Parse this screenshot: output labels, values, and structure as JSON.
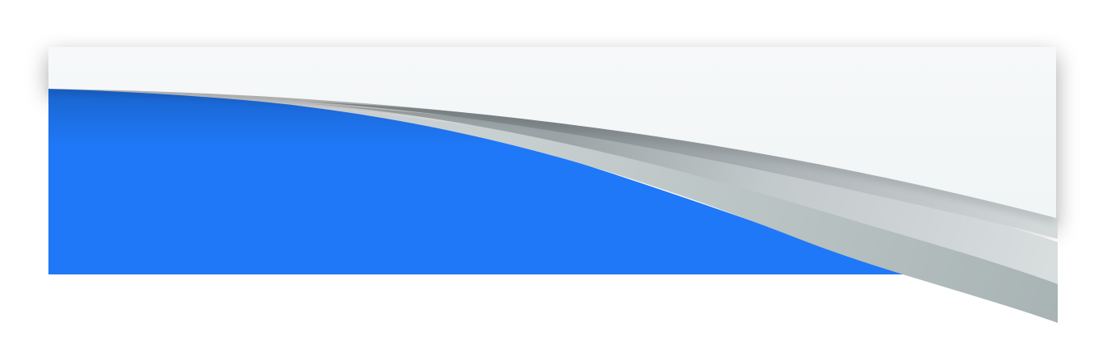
{
  "graphic": {
    "kind": "decorative page-curl banner",
    "colors": {
      "background": "#ffffff",
      "paper": "#f4f7f8",
      "blue_top": "#64b8e0",
      "blue_bottom": "#1f78f7",
      "curl_light": "#d7dcdd",
      "curl_mid": "#c2cbcb",
      "curl_dark": "#9aa5a7",
      "shadow": "#000000"
    }
  }
}
